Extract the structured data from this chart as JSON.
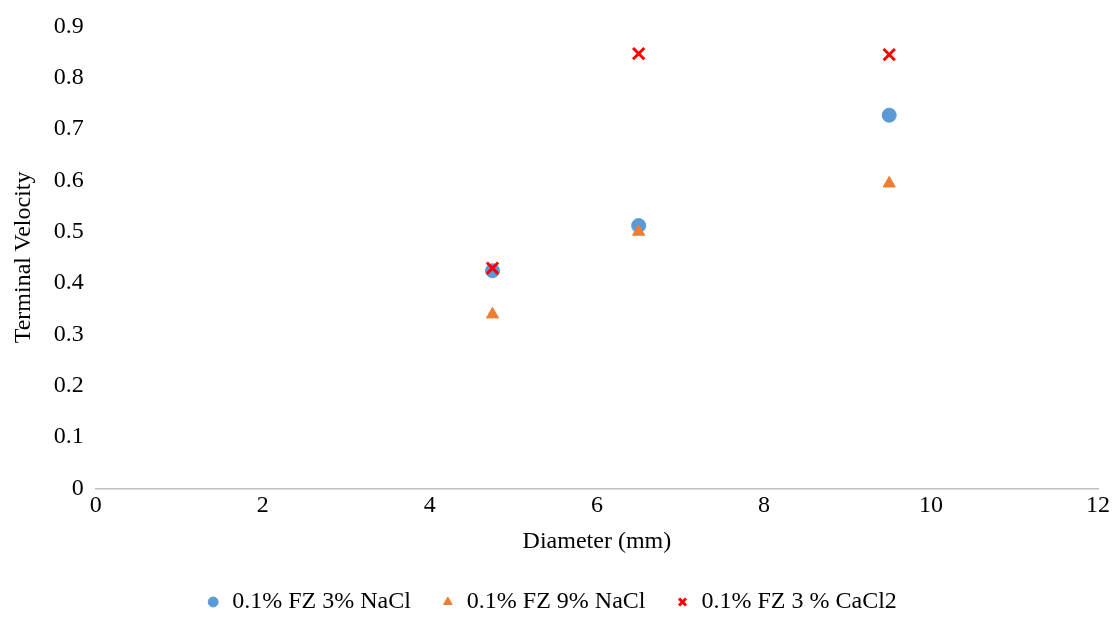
{
  "chart_data": {
    "type": "scatter",
    "xlabel": "Diameter (mm)",
    "ylabel": "Terminal Velocity",
    "xlim": [
      0,
      12
    ],
    "xticks": [
      0,
      2,
      4,
      6,
      8,
      10,
      12
    ],
    "ylim": [
      0,
      0.9
    ],
    "yticks": [
      0,
      0.1,
      0.2,
      0.3,
      0.4,
      0.5,
      0.6,
      0.7,
      0.8,
      0.9
    ],
    "grid": false,
    "legend": "bottom",
    "series": [
      {
        "name": "0.1% FZ 3% NaCl",
        "color": "#5b9bd5",
        "marker": "circle",
        "x": [
          4.75,
          6.5,
          9.5
        ],
        "values": [
          0.424,
          0.512,
          0.727
        ]
      },
      {
        "name": "0.1% FZ 9% NaCl",
        "color": "#ed7d31",
        "marker": "triangle",
        "x": [
          4.75,
          6.5,
          9.5
        ],
        "values": [
          0.339,
          0.5,
          0.594
        ]
      },
      {
        "name": "0.1% FZ 3 % CaCl2",
        "color": "#ff0000",
        "marker": "cross",
        "x": [
          4.75,
          6.5,
          9.5
        ],
        "values": [
          0.429,
          0.847,
          0.845
        ]
      }
    ]
  }
}
